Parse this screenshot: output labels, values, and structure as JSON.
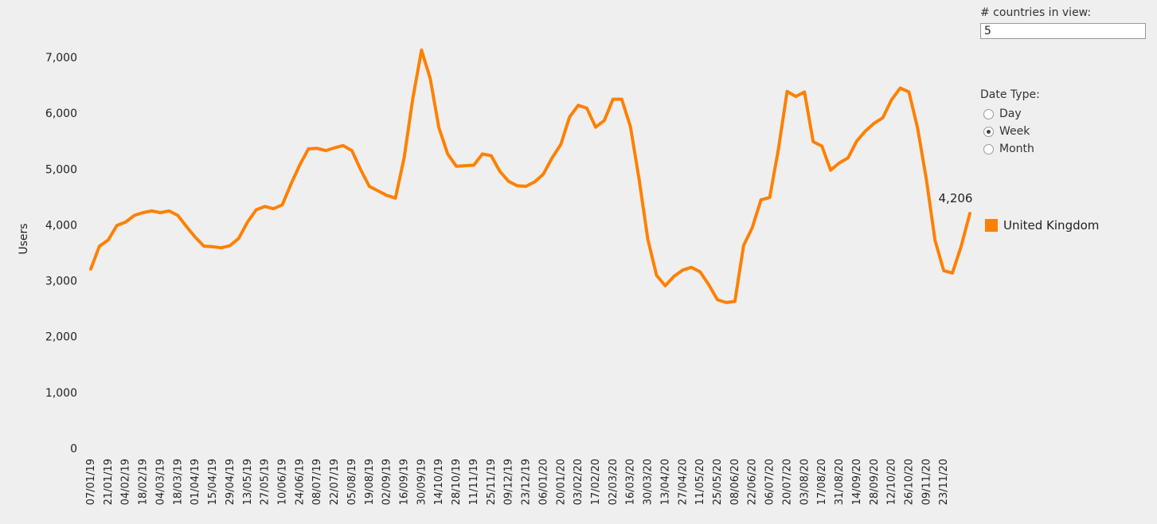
{
  "controls": {
    "count_label": "# countries in view:",
    "count_value": "5",
    "date_type_label": "Date Type:",
    "date_types": [
      {
        "label": "Day",
        "checked": false
      },
      {
        "label": "Week",
        "checked": true
      },
      {
        "label": "Month",
        "checked": false
      }
    ]
  },
  "legend": {
    "label": "United Kingdom",
    "color": "#ff8000"
  },
  "chart_data": {
    "type": "line",
    "ylabel": "Users",
    "xlabel": "",
    "ylim": [
      0,
      7000
    ],
    "yticks": [
      0,
      1000,
      2000,
      3000,
      4000,
      5000,
      6000,
      7000
    ],
    "ytick_labels": [
      "0",
      "1,000",
      "2,000",
      "3,000",
      "4,000",
      "5,000",
      "6,000",
      "7,000"
    ],
    "x_tick_labels": [
      "07/01/19",
      "21/01/19",
      "04/02/19",
      "18/02/19",
      "04/03/19",
      "18/03/19",
      "01/04/19",
      "15/04/19",
      "29/04/19",
      "13/05/19",
      "27/05/19",
      "10/06/19",
      "24/06/19",
      "08/07/19",
      "22/07/19",
      "05/08/19",
      "19/08/19",
      "02/09/19",
      "16/09/19",
      "30/09/19",
      "14/10/19",
      "28/10/19",
      "11/11/19",
      "25/11/19",
      "09/12/19",
      "23/12/19",
      "06/01/20",
      "20/01/20",
      "03/02/20",
      "17/02/20",
      "02/03/20",
      "16/03/20",
      "30/03/20",
      "13/04/20",
      "27/04/20",
      "11/05/20",
      "25/05/20",
      "08/06/20",
      "22/06/20",
      "06/07/20",
      "20/07/20",
      "03/08/20",
      "17/08/20",
      "31/08/20",
      "14/09/20",
      "28/09/20",
      "12/10/20",
      "26/10/20",
      "09/11/20",
      "23/11/20"
    ],
    "series": [
      {
        "name": "United Kingdom",
        "color": "#ff8000",
        "values": [
          3210,
          3620,
          3730,
          3990,
          4050,
          4170,
          4220,
          4250,
          4220,
          4250,
          4170,
          3970,
          3780,
          3620,
          3610,
          3590,
          3630,
          3760,
          4050,
          4270,
          4330,
          4290,
          4360,
          4730,
          5070,
          5360,
          5370,
          5330,
          5380,
          5420,
          5330,
          4990,
          4690,
          4610,
          4530,
          4480,
          5200,
          6260,
          7130,
          6620,
          5740,
          5270,
          5050,
          5060,
          5070,
          5270,
          5240,
          4960,
          4780,
          4700,
          4690,
          4770,
          4910,
          5200,
          5440,
          5930,
          6140,
          6090,
          5750,
          5870,
          6250,
          6250,
          5760,
          4820,
          3740,
          3100,
          2910,
          3080,
          3190,
          3240,
          3160,
          2930,
          2660,
          2610,
          2630,
          3630,
          3950,
          4450,
          4490,
          5350,
          6390,
          6300,
          6380,
          5490,
          5410,
          4980,
          5110,
          5200,
          5500,
          5680,
          5820,
          5920,
          6240,
          6450,
          6380,
          5730,
          4820,
          3720,
          3180,
          3140,
          3620,
          4206
        ]
      }
    ],
    "annotations": [
      {
        "text": "4,206"
      }
    ]
  }
}
